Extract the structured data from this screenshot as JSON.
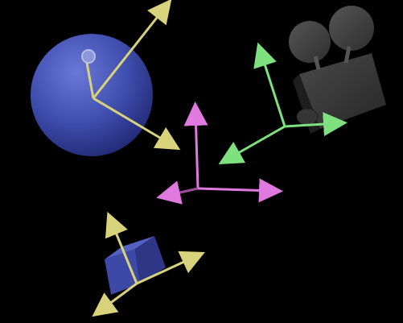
{
  "scene": {
    "background_color": "#000000",
    "objects": [
      {
        "name": "sphere",
        "color": "#3b4aa8",
        "axis_color": "#d8d27a"
      },
      {
        "name": "film-camera",
        "color": "#3a3a3a",
        "axis_color": "#7fe07f"
      },
      {
        "name": "world-origin",
        "axis_color": "#e07ae0"
      },
      {
        "name": "cube",
        "color": "#3d49a6",
        "axis_color": "#d8d27a"
      }
    ]
  }
}
